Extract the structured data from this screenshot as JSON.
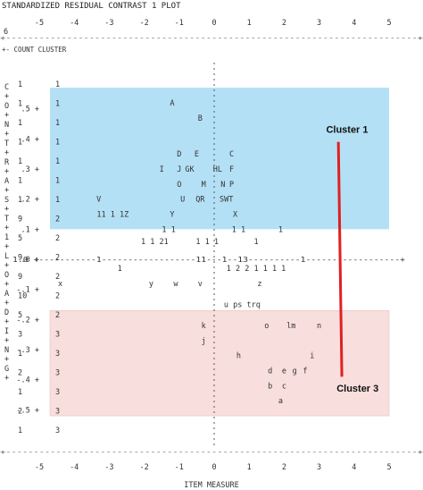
{
  "chart_data": {
    "type": "scatter",
    "title": "STANDARDIZED RESIDUAL CONTRAST 1 PLOT",
    "xlabel": "ITEM MEASURE",
    "corner_label": "6",
    "count_header": "+- COUNT  CLUSTER",
    "xlim": [
      -5,
      5
    ],
    "x_ticks": [
      "-5",
      "-4",
      "-3",
      "-2",
      "-1",
      "0",
      "1",
      "2",
      "3",
      "4",
      "5"
    ],
    "ylim": [
      -0.6,
      0.6
    ],
    "y_ticks": [
      ".5",
      ".4",
      ".3",
      ".2",
      ".1",
      ".0",
      "-.1",
      "-.2",
      "-.3",
      "-.4",
      "-.5"
    ],
    "y_axis_label": "C O N T R A S T 1 L O A D I N G",
    "counts_col": [
      [
        "1",
        "1"
      ],
      [
        "1",
        "1"
      ],
      [
        "1",
        "1"
      ],
      [
        "1",
        "1"
      ],
      [
        "1",
        "1"
      ],
      [
        "1",
        "1"
      ],
      [
        "1",
        "1"
      ],
      [
        "9",
        "2"
      ],
      [
        "5",
        "2"
      ],
      [
        "9",
        "2"
      ],
      [
        "9",
        "2"
      ],
      [
        "10",
        "2"
      ],
      [
        "5",
        "2"
      ],
      [
        "3",
        "3"
      ],
      [
        "1",
        "3"
      ],
      [
        "2",
        "3"
      ],
      [
        "1",
        "3"
      ],
      [
        "2",
        "3"
      ],
      [
        "1",
        "3"
      ]
    ],
    "clusters": [
      {
        "name": "Cluster 1",
        "color": "#b3e0f5",
        "points": [
          {
            "label": "A",
            "x": -1.2,
            "y": 0.52
          },
          {
            "label": "B",
            "x": -0.4,
            "y": 0.47
          },
          {
            "label": "D",
            "x": -1.0,
            "y": 0.35
          },
          {
            "label": "E",
            "x": -0.5,
            "y": 0.35
          },
          {
            "label": "C",
            "x": 0.5,
            "y": 0.35
          },
          {
            "label": "I",
            "x": -1.5,
            "y": 0.3
          },
          {
            "label": "J",
            "x": -1.0,
            "y": 0.3
          },
          {
            "label": "GK",
            "x": -0.7,
            "y": 0.3
          },
          {
            "label": "HL",
            "x": 0.1,
            "y": 0.3
          },
          {
            "label": "F",
            "x": 0.5,
            "y": 0.3
          },
          {
            "label": "O",
            "x": -1.0,
            "y": 0.25
          },
          {
            "label": "M",
            "x": -0.3,
            "y": 0.25
          },
          {
            "label": "N",
            "x": 0.25,
            "y": 0.25
          },
          {
            "label": "P",
            "x": 0.5,
            "y": 0.25
          },
          {
            "label": "V",
            "x": -3.3,
            "y": 0.2
          },
          {
            "label": "U",
            "x": -0.9,
            "y": 0.2
          },
          {
            "label": "QR",
            "x": -0.4,
            "y": 0.2
          },
          {
            "label": "SWT",
            "x": 0.35,
            "y": 0.2
          },
          {
            "label": "Y",
            "x": -1.2,
            "y": 0.15
          },
          {
            "label": "X",
            "x": 0.6,
            "y": 0.15
          }
        ]
      },
      {
        "name": "Cluster 3",
        "color": "#f9dede",
        "points": [
          {
            "label": "k",
            "x": -0.3,
            "y": -0.22
          },
          {
            "label": "o",
            "x": 1.5,
            "y": -0.22
          },
          {
            "label": "lm",
            "x": 2.2,
            "y": -0.22
          },
          {
            "label": "n",
            "x": 3.0,
            "y": -0.22
          },
          {
            "label": "j",
            "x": -0.3,
            "y": -0.27
          },
          {
            "label": "h",
            "x": 0.7,
            "y": -0.32
          },
          {
            "label": "i",
            "x": 2.8,
            "y": -0.32
          },
          {
            "label": "d",
            "x": 1.6,
            "y": -0.37
          },
          {
            "label": "e",
            "x": 2.0,
            "y": -0.37
          },
          {
            "label": "g",
            "x": 2.3,
            "y": -0.37
          },
          {
            "label": "f",
            "x": 2.6,
            "y": -0.37
          },
          {
            "label": "b",
            "x": 1.6,
            "y": -0.42
          },
          {
            "label": "c",
            "x": 2.0,
            "y": -0.42
          },
          {
            "label": "a",
            "x": 1.9,
            "y": -0.47
          }
        ]
      }
    ],
    "other_marks": [
      {
        "text": "11 1 1Z",
        "x": -2.9,
        "y": 0.15
      },
      {
        "text": "1  1",
        "x": -1.3,
        "y": 0.1
      },
      {
        "text": "1 1",
        "x": 0.7,
        "y": 0.1
      },
      {
        "text": "1",
        "x": 1.9,
        "y": 0.1
      },
      {
        "text": "1 1 21",
        "x": -1.7,
        "y": 0.06
      },
      {
        "text": "1 1 1",
        "x": -0.2,
        "y": 0.06
      },
      {
        "text": "1",
        "x": 1.2,
        "y": 0.06
      },
      {
        "text": "1",
        "x": -2.7,
        "y": -0.03
      },
      {
        "text": "1  2 2 1 1 1 1",
        "x": 1.2,
        "y": -0.03
      },
      {
        "text": "x",
        "x": -4.4,
        "y": -0.08
      },
      {
        "text": "y",
        "x": -1.8,
        "y": -0.08
      },
      {
        "text": "w",
        "x": -1.1,
        "y": -0.08
      },
      {
        "text": "v",
        "x": -0.4,
        "y": -0.08
      },
      {
        "text": "z",
        "x": 1.3,
        "y": -0.08
      },
      {
        "text": "u ps trq",
        "x": 0.8,
        "y": -0.15
      }
    ],
    "zero_line_marks": "1.0 +-----------1------------------11---1--13----------1------------------+",
    "axis_frame": "+--------------------------------------------------------------------------+",
    "annotations": [
      {
        "text": "Cluster 1",
        "x": 3.2,
        "y": 0.42
      },
      {
        "text": "Cluster 3",
        "x": 3.5,
        "y": -0.44
      }
    ],
    "annotation_color": "#e02020"
  }
}
